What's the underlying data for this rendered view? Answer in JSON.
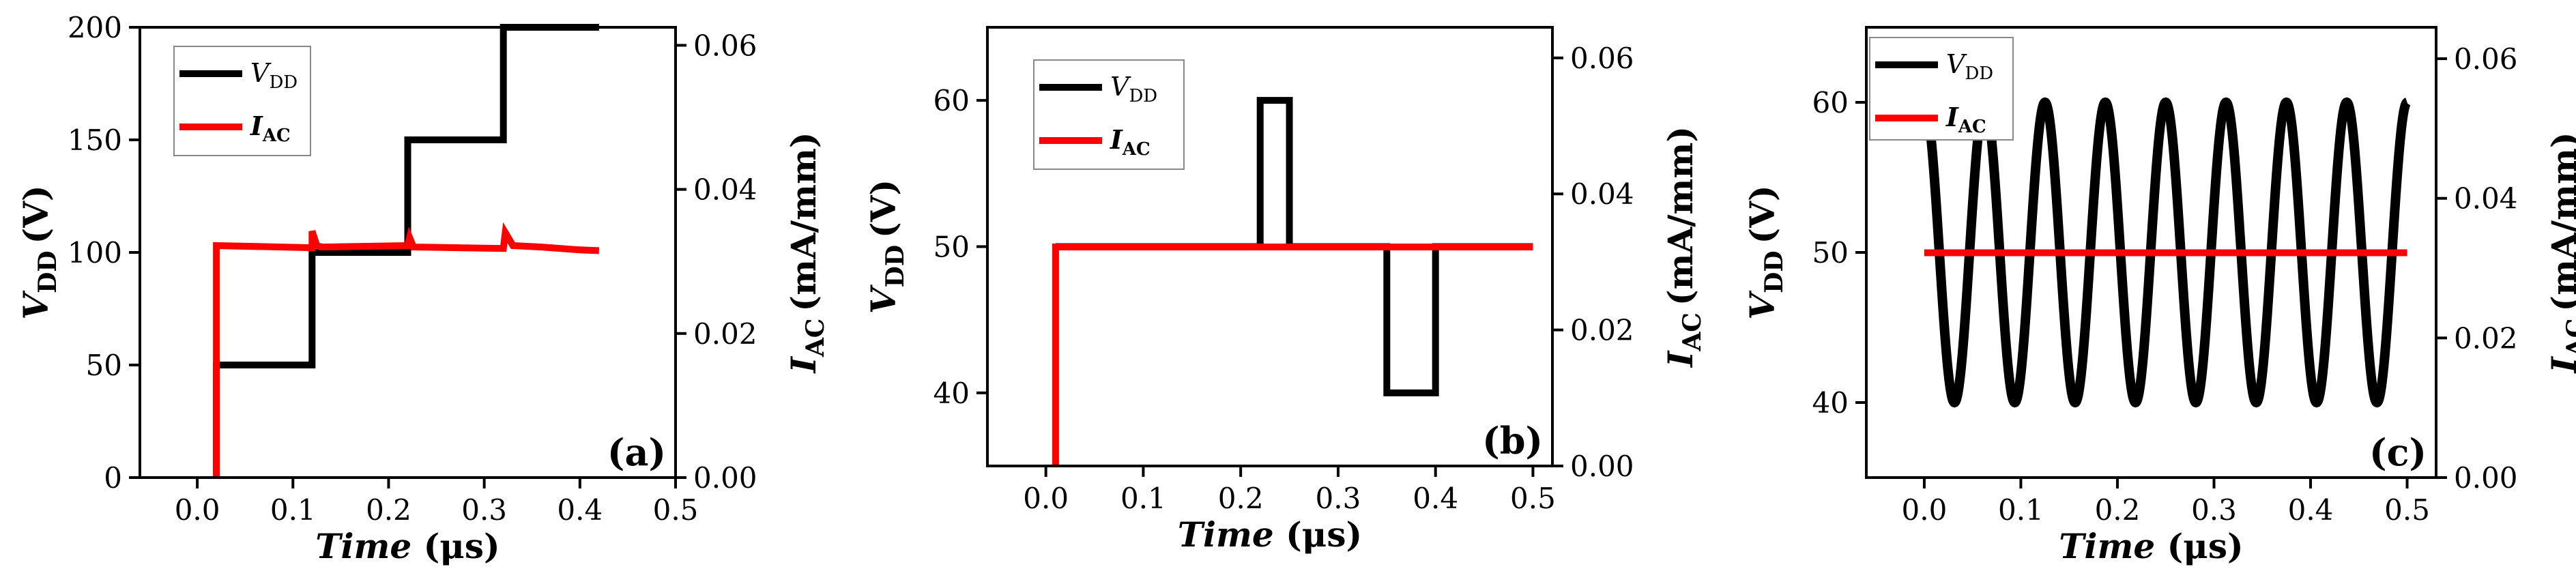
{
  "chart_data": [
    {
      "type": "line",
      "panel_label": "(a)",
      "xlabel_italic": "Time",
      "xlabel_unit": "(μs)",
      "ylabel_main": "V",
      "ylabel_sub": "DD",
      "ylabel_unit": "(V)",
      "y2label_main": "I",
      "y2label_sub": "AC",
      "y2label_unit": "(mA/mm)",
      "xlim": [
        -0.06,
        0.5
      ],
      "ylim": [
        0,
        200
      ],
      "y2lim": [
        0,
        0.0625
      ],
      "xticks": [
        0.0,
        0.1,
        0.2,
        0.3,
        0.4,
        0.5
      ],
      "xtick_labels": [
        "0.0",
        "0.1",
        "0.2",
        "0.3",
        "0.4",
        "0.5"
      ],
      "yticks": [
        0,
        50,
        100,
        150,
        200
      ],
      "ytick_labels": [
        "0",
        "50",
        "100",
        "150",
        "200"
      ],
      "y2ticks": [
        0.0,
        0.02,
        0.04,
        0.06
      ],
      "y2tick_labels": [
        "0.00",
        "0.02",
        "0.04",
        "0.06"
      ],
      "legend": [
        {
          "main": "V",
          "sub": "DD",
          "italic": true,
          "bold": false,
          "color": "#000000"
        },
        {
          "main": "I",
          "sub": "AC",
          "italic": true,
          "bold": true,
          "color": "#ff0000"
        }
      ],
      "series": [
        {
          "name": "VDD",
          "axis": "left",
          "color": "#000000",
          "x": [
            0.02,
            0.02,
            0.12,
            0.12,
            0.22,
            0.22,
            0.32,
            0.32,
            0.42
          ],
          "y": [
            0,
            50,
            50,
            100,
            100,
            150,
            150,
            200,
            200
          ]
        },
        {
          "name": "IAC",
          "axis": "right",
          "color": "#ff0000",
          "x": [
            0.02,
            0.02,
            0.12,
            0.12,
            0.125,
            0.13,
            0.22,
            0.222,
            0.226,
            0.32,
            0.322,
            0.33,
            0.36,
            0.4,
            0.42
          ],
          "y": [
            0,
            0.0322,
            0.0319,
            0.0342,
            0.0322,
            0.032,
            0.0322,
            0.0333,
            0.032,
            0.0318,
            0.034,
            0.0322,
            0.032,
            0.0316,
            0.0315
          ]
        }
      ]
    },
    {
      "type": "line",
      "panel_label": "(b)",
      "xlabel_italic": "Time",
      "xlabel_unit": "(μs)",
      "ylabel_main": "V",
      "ylabel_sub": "DD",
      "ylabel_unit": "(V)",
      "y2label_main": "I",
      "y2label_sub": "AC",
      "y2label_unit": "(mA/mm)",
      "xlim": [
        -0.06,
        0.52
      ],
      "ylim": [
        35,
        65
      ],
      "y2lim": [
        0,
        0.0645
      ],
      "xticks": [
        0.0,
        0.1,
        0.2,
        0.3,
        0.4,
        0.5
      ],
      "xtick_labels": [
        "0.0",
        "0.1",
        "0.2",
        "0.3",
        "0.4",
        "0.5"
      ],
      "yticks": [
        40,
        50,
        60
      ],
      "ytick_labels": [
        "40",
        "50",
        "60"
      ],
      "y2ticks": [
        0.0,
        0.02,
        0.04,
        0.06
      ],
      "y2tick_labels": [
        "0.00",
        "0.02",
        "0.04",
        "0.06"
      ],
      "legend": [
        {
          "main": "V",
          "sub": "DD",
          "italic": true,
          "bold": false,
          "color": "#000000"
        },
        {
          "main": "I",
          "sub": "AC",
          "italic": true,
          "bold": true,
          "color": "#ff0000"
        }
      ],
      "series": [
        {
          "name": "VDD",
          "axis": "left",
          "color": "#000000",
          "x": [
            0.01,
            0.22,
            0.22,
            0.25,
            0.25,
            0.35,
            0.35,
            0.4,
            0.4,
            0.5
          ],
          "y": [
            50,
            50,
            60,
            60,
            50,
            50,
            40,
            40,
            50,
            50
          ]
        },
        {
          "name": "IAC",
          "axis": "right",
          "color": "#ff0000",
          "x": [
            0.01,
            0.01,
            0.5
          ],
          "y": [
            0,
            0.0322,
            0.0322
          ]
        }
      ]
    },
    {
      "type": "line",
      "panel_label": "(c)",
      "xlabel_italic": "Time",
      "xlabel_unit": "(μs)",
      "ylabel_main": "V",
      "ylabel_sub": "DD",
      "ylabel_unit": "(V)",
      "y2label_main": "I",
      "y2label_sub": "AC",
      "y2label_unit": "(mA/mm)",
      "xlim": [
        -0.06,
        0.53
      ],
      "ylim": [
        35,
        65
      ],
      "y2lim": [
        0,
        0.0645
      ],
      "xticks": [
        0.0,
        0.1,
        0.2,
        0.3,
        0.4,
        0.5
      ],
      "xtick_labels": [
        "0.0",
        "0.1",
        "0.2",
        "0.3",
        "0.4",
        "0.5"
      ],
      "yticks": [
        40,
        50,
        60
      ],
      "ytick_labels": [
        "40",
        "50",
        "60"
      ],
      "y2ticks": [
        0.0,
        0.02,
        0.04,
        0.06
      ],
      "y2tick_labels": [
        "0.00",
        "0.02",
        "0.04",
        "0.06"
      ],
      "legend": [
        {
          "main": "V",
          "sub": "DD",
          "italic": true,
          "bold": false,
          "color": "#000000"
        },
        {
          "main": "I",
          "sub": "AC",
          "italic": true,
          "bold": true,
          "color": "#ff0000"
        }
      ],
      "series": [
        {
          "name": "VDD",
          "axis": "left",
          "color": "#000000",
          "function": "sine",
          "x_range": [
            0.0,
            0.5
          ],
          "offset": 50,
          "amplitude": 10,
          "period": 0.0625
        },
        {
          "name": "IAC",
          "axis": "right",
          "color": "#ff0000",
          "x": [
            0.0,
            0.5
          ],
          "y": [
            0.0322,
            0.0322
          ]
        }
      ]
    }
  ]
}
